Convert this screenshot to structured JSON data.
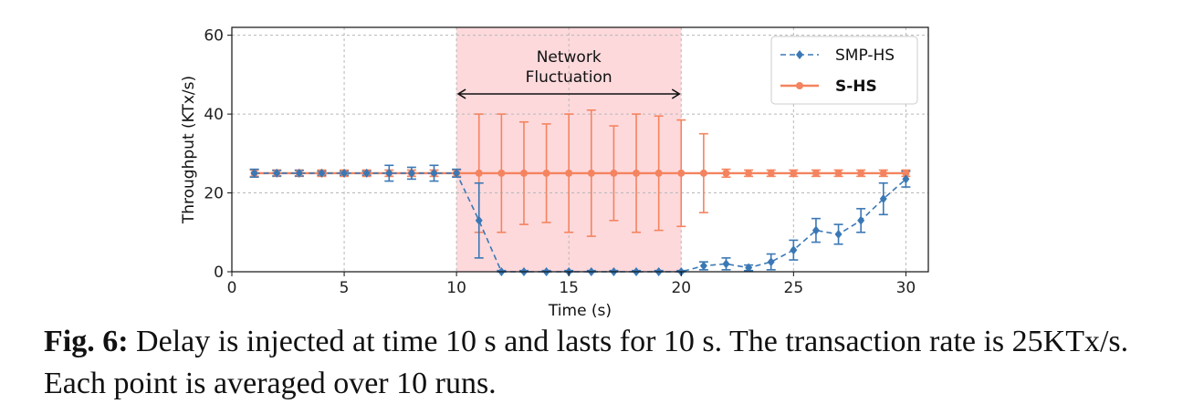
{
  "figure": {
    "caption_label": "Fig. 6:",
    "caption_text": "Delay is injected at time 10 s and lasts for 10 s. The transaction rate is 25KTx/s. Each point is averaged over 10 runs."
  },
  "chart_data": {
    "type": "line",
    "title": "",
    "xlabel": "Time (s)",
    "ylabel": "Throughput (KTx/s)",
    "xlim": [
      0,
      31
    ],
    "ylim": [
      0,
      62
    ],
    "xticks": [
      0,
      5,
      10,
      15,
      20,
      25,
      30
    ],
    "yticks": [
      0,
      20,
      40,
      60
    ],
    "grid": true,
    "legend_position": "top-right",
    "shaded_region": {
      "x_start": 10,
      "x_end": 20,
      "color": "#fdd9dc"
    },
    "annotation": {
      "line1": "Network",
      "line2": "Fluctuation",
      "x_start": 10,
      "x_end": 20,
      "y": 45
    },
    "x": [
      1,
      2,
      3,
      4,
      5,
      6,
      7,
      8,
      9,
      10,
      11,
      12,
      13,
      14,
      15,
      16,
      17,
      18,
      19,
      20,
      21,
      22,
      23,
      24,
      25,
      26,
      27,
      28,
      29,
      30
    ],
    "series": [
      {
        "name": "SMP-HS",
        "color": "#3a78b5",
        "style": "dashed",
        "marker": "diamond",
        "label_bold": false,
        "values": [
          25,
          25,
          25,
          25,
          25,
          25,
          25,
          25,
          25,
          25,
          13,
          0,
          0,
          0,
          0,
          0,
          0,
          0,
          0,
          0,
          1.5,
          2,
          1,
          2.5,
          5.5,
          10.5,
          9.5,
          13,
          18.5,
          23.5
        ],
        "errors": [
          1,
          0.7,
          0.7,
          0.5,
          0.5,
          0.5,
          2,
          1.5,
          2,
          1,
          9.5,
          0.3,
          0.3,
          0.3,
          0.3,
          0.3,
          0.3,
          0.3,
          0.3,
          0.3,
          1,
          1.5,
          0.7,
          2,
          2.5,
          3,
          2.5,
          3,
          4,
          2
        ]
      },
      {
        "name": "S-HS",
        "color": "#f4845f",
        "style": "solid",
        "marker": "circle",
        "label_bold": true,
        "values": [
          25,
          25,
          25,
          25,
          25,
          25,
          25,
          25,
          25,
          25,
          25,
          25,
          25,
          25,
          25,
          25,
          25,
          25,
          25,
          25,
          25,
          25,
          25,
          25,
          25,
          25,
          25,
          25,
          25,
          25
        ],
        "errors": [
          0.8,
          0.8,
          0.8,
          0.8,
          0.8,
          0.8,
          0.8,
          0.8,
          0.8,
          0.8,
          15,
          15,
          13,
          12.5,
          15,
          16,
          12,
          15,
          14.5,
          13.5,
          10,
          1,
          0.8,
          0.8,
          0.8,
          0.8,
          0.8,
          0.8,
          0.8,
          0.8
        ]
      }
    ]
  }
}
